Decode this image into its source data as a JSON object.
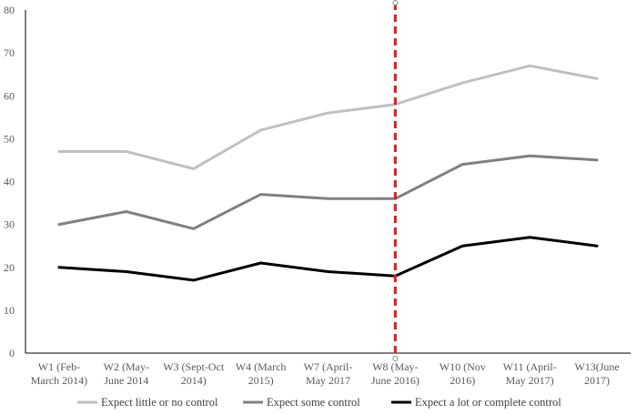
{
  "chart_data": {
    "type": "line",
    "title": "",
    "xlabel": "",
    "ylabel": "",
    "ylim": [
      0,
      80
    ],
    "yticks": [
      0,
      10,
      20,
      30,
      40,
      50,
      60,
      70,
      80
    ],
    "grid": false,
    "legend_position": "bottom",
    "categories": [
      [
        "W1 (Feb-",
        "March 2014)"
      ],
      [
        "W2 (May-",
        "June 2014"
      ],
      [
        "W3 (Sept-Oct",
        "2014)"
      ],
      [
        "W4 (March",
        "2015)"
      ],
      [
        "W7 (April-",
        "May 2017"
      ],
      [
        "W8 (May-",
        "June 2016)"
      ],
      [
        "W10 (Nov",
        "2016)"
      ],
      [
        "W11 (April-",
        "May 2017)"
      ],
      [
        "W13(June",
        "2017)"
      ]
    ],
    "series": [
      {
        "name": "Expect little or no control",
        "color": "#c0c0c0",
        "values": [
          47,
          47,
          43,
          52,
          56,
          58,
          63,
          67,
          64
        ]
      },
      {
        "name": "Expect some control",
        "color": "#808080",
        "values": [
          30,
          33,
          29,
          37,
          36,
          36,
          44,
          46,
          45
        ]
      },
      {
        "name": "Expect a lot or complete control",
        "color": "#000000",
        "values": [
          20,
          19,
          17,
          21,
          19,
          18,
          25,
          27,
          25
        ]
      }
    ],
    "annotations": [
      {
        "type": "vertical-dashed-line",
        "at_category_index": 5,
        "color": "#e31a1c"
      }
    ]
  }
}
